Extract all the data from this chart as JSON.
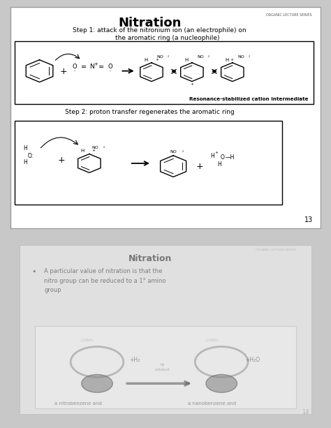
{
  "title": "Nitration",
  "subtitle": "ORGANIC LECTURE SERIES",
  "step1_text": "Step 1: attack of the nitronium ion (an electrophile) on\n        the aromatic ring (a nucleophile)",
  "step2_text": "Step 2: proton transfer regenerates the aromatic ring",
  "resonance_label": "Resonance-stabilized cation intermediate",
  "page_number": "13",
  "blurred_title": "Nitration",
  "blurred_body": "A particular value of nitration is that the\nnitro group can be reduced to a 1° amino\ngroup",
  "page_number2": "14",
  "top_bg": "#ffffff",
  "bot_bg": "#d8d8d8",
  "fig_bg": "#c8c8c8"
}
